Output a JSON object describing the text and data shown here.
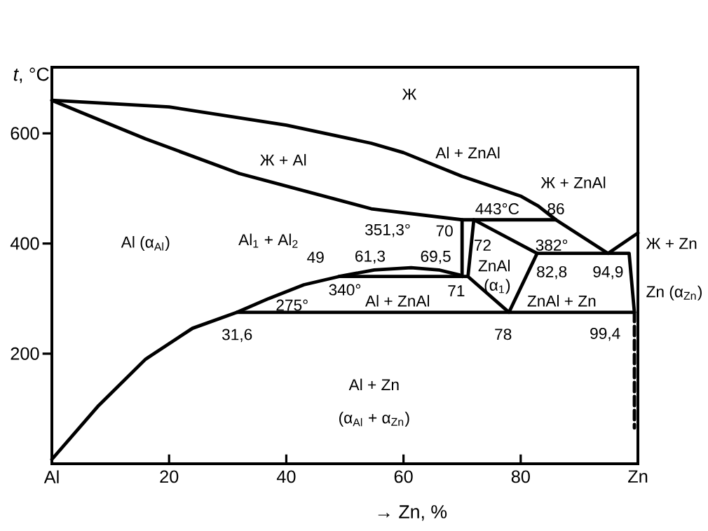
{
  "chart_data": {
    "type": "line",
    "xlabel": "→ Zn, %",
    "ylabel": "*t*, °C",
    "xlim": [
      0,
      100
    ],
    "ylim": [
      0,
      720
    ],
    "xticks": [
      {
        "value": 0,
        "label": "Al"
      },
      20,
      40,
      60,
      80,
      {
        "value": 100,
        "label": "Zn"
      }
    ],
    "yticks": [
      200,
      400,
      600
    ],
    "grid": false,
    "marker": "none",
    "series": [
      {
        "color": "#000000",
        "x": [
          0,
          20,
          40,
          54.5,
          60,
          70,
          80,
          83,
          86,
          94.9,
          100
        ],
        "values": [
          660,
          648,
          615,
          582,
          565,
          522,
          486,
          468,
          443,
          382,
          419
        ]
      },
      {
        "color": "#000000",
        "x": [
          0,
          5,
          16,
          32,
          54.5,
          70,
          86
        ],
        "values": [
          660,
          638,
          590,
          527,
          463,
          443,
          443
        ]
      },
      {
        "color": "#000000",
        "x": [
          70,
          70
        ],
        "values": [
          443,
          340
        ]
      },
      {
        "color": "#000000",
        "x": [
          49,
          71,
          72,
          82.8,
          78,
          71
        ],
        "values": [
          340,
          340,
          443,
          382,
          275,
          340
        ]
      },
      {
        "color": "#000000",
        "x": [
          82.8,
          98.5,
          99.4
        ],
        "values": [
          382,
          382,
          275
        ]
      },
      {
        "color": "#000000",
        "line_style": "dashed",
        "x": [
          99.4,
          99.4
        ],
        "values": [
          275,
          65
        ]
      },
      {
        "color": "#000000",
        "x": [
          0,
          8,
          16,
          24,
          31.6,
          99.4
        ],
        "values": [
          8,
          106,
          190,
          246,
          275,
          275
        ]
      },
      {
        "color": "#000000",
        "x": [
          31.6,
          37,
          43,
          49,
          55,
          61.3,
          66,
          69.5,
          70
        ],
        "values": [
          275,
          300,
          325,
          340,
          352,
          356,
          352,
          343,
          340
        ]
      }
    ],
    "annotations": [
      "Ж",
      "Ж + Al",
      "Al + ZnAl",
      "Ж + ZnAl",
      "Al (α$_{Al}$)",
      "Al$_{1}$ + Al$_{2}$",
      "ZnAl",
      "(α$_{1}$)",
      "Al + ZnAl",
      "ZnAl + Zn",
      "Al + Zn",
      "(α$_{Al}$ + α$_{Zn}$)",
      "Ж + Zn",
      "Zn (α$_{Zn}$)",
      {
        "text": "443°C",
        "x": 72,
        "y": 443
      },
      {
        "text": "86",
        "x": 86,
        "y": 443
      },
      {
        "text": "351,3°",
        "x": 61.3,
        "y": 351.3
      },
      {
        "text": "70",
        "x": 70,
        "y": 443
      },
      {
        "text": "72",
        "x": 72,
        "y": 443
      },
      {
        "text": "382°",
        "x": 82.8,
        "y": 382
      },
      {
        "text": "61,3",
        "x": 61.3,
        "y": 351.3
      },
      {
        "text": "69,5",
        "x": 69.5,
        "y": 343
      },
      {
        "text": "49",
        "x": 49,
        "y": 340
      },
      {
        "text": "82,8",
        "x": 82.8,
        "y": 382
      },
      {
        "text": "94,9",
        "x": 94.9,
        "y": 382
      },
      {
        "text": "340°",
        "x": 49,
        "y": 340
      },
      {
        "text": "71",
        "x": 71,
        "y": 340
      },
      {
        "text": "275°",
        "x": 41,
        "y": 275
      },
      {
        "text": "31,6",
        "x": 31.6,
        "y": 275
      },
      {
        "text": "78",
        "x": 78,
        "y": 275
      },
      {
        "text": "99,4",
        "x": 99.4,
        "y": 275
      }
    ]
  }
}
